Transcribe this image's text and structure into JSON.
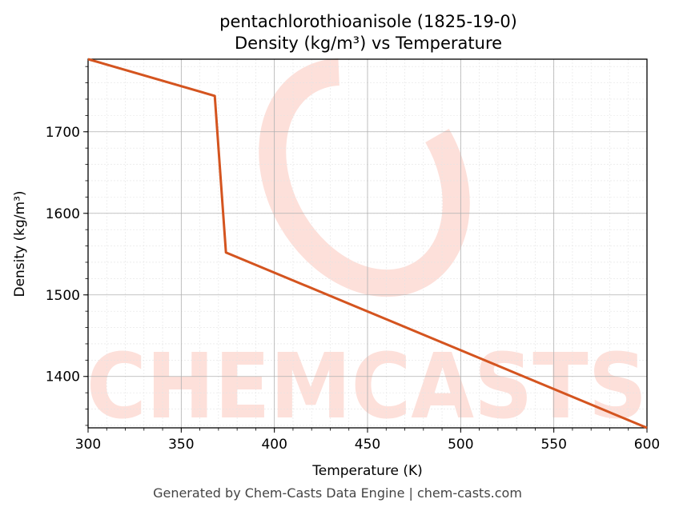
{
  "chart_data": {
    "type": "line",
    "title_line1": "pentachlorothioanisole (1825-19-0)",
    "title_line2": "Density (kg/m³) vs Temperature",
    "xlabel": "Temperature (K)",
    "ylabel": "Density (kg/m³)",
    "xlim": [
      300,
      600
    ],
    "ylim": [
      1337,
      1789
    ],
    "x_ticks": [
      300,
      350,
      400,
      450,
      500,
      550,
      600
    ],
    "y_ticks": [
      1400,
      1500,
      1600,
      1700
    ],
    "grid": true,
    "line_color": "#d4541f",
    "series": [
      {
        "x": [
          300,
          368,
          374,
          600
        ],
        "values": [
          1789,
          1744,
          1552,
          1337
        ]
      }
    ]
  },
  "watermark": {
    "text": "CHEMCASTS",
    "color": "#fde0da"
  },
  "footer": "Generated by Chem-Casts Data Engine | chem-casts.com"
}
